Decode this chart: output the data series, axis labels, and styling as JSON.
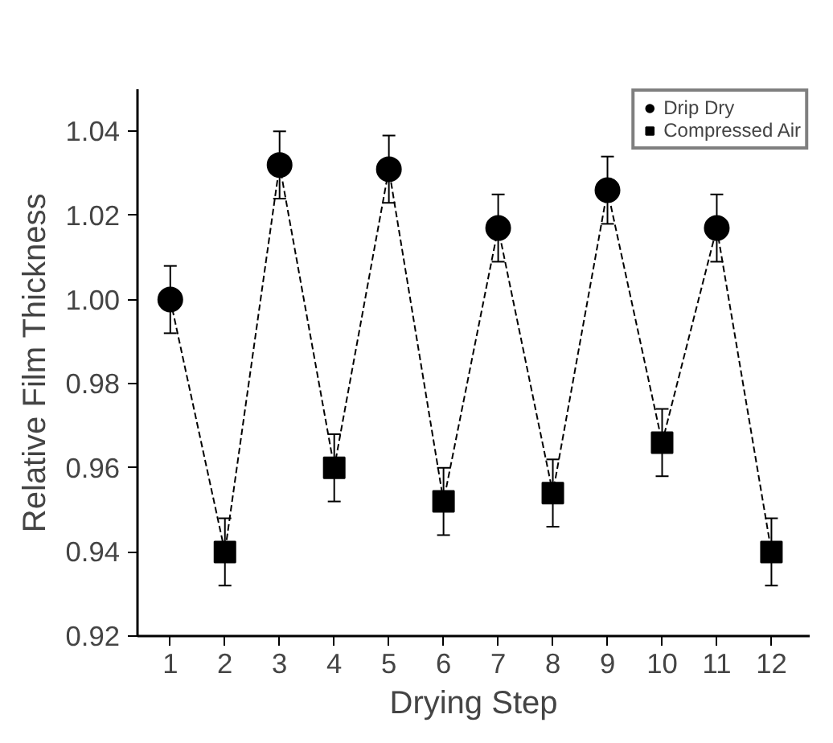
{
  "chart_data": {
    "type": "scatter",
    "xlabel": "Drying Step",
    "ylabel": "Relative Film Thickness",
    "xlim": [
      0.4,
      12.7
    ],
    "ylim": [
      0.92,
      1.05
    ],
    "xticks": [
      1,
      2,
      3,
      4,
      5,
      6,
      7,
      8,
      9,
      10,
      11,
      12
    ],
    "yticks": [
      {
        "value": 0.92,
        "label": "0.92"
      },
      {
        "value": 0.94,
        "label": "0.94"
      },
      {
        "value": 0.96,
        "label": "0.96"
      },
      {
        "value": 0.98,
        "label": "0.98"
      },
      {
        "value": 1.0,
        "label": "1.00"
      },
      {
        "value": 1.02,
        "label": "1.02"
      },
      {
        "value": 1.04,
        "label": "1.04"
      }
    ],
    "grid": false,
    "legend": "top right",
    "series": [
      {
        "type": "line",
        "color": "#000000",
        "line_style": "dashed",
        "marker": "none",
        "x": [
          1,
          2,
          3,
          4,
          5,
          6,
          7,
          8,
          9,
          10,
          11,
          12
        ],
        "values": [
          1.0,
          0.94,
          1.032,
          0.96,
          1.031,
          0.952,
          1.017,
          0.954,
          1.026,
          0.966,
          1.017,
          0.94
        ]
      },
      {
        "name": "Drip Dry",
        "color": "#000000",
        "marker": "circle",
        "x": [
          1,
          3,
          5,
          7,
          9,
          11
        ],
        "values": [
          1.0,
          1.032,
          1.031,
          1.017,
          1.026,
          1.017
        ],
        "errors": [
          0.008,
          0.008,
          0.008,
          0.008,
          0.008,
          0.008
        ]
      },
      {
        "name": "Compressed Air",
        "color": "#000000",
        "marker": "square",
        "x": [
          2,
          4,
          6,
          8,
          10,
          12
        ],
        "values": [
          0.94,
          0.96,
          0.952,
          0.954,
          0.966,
          0.94
        ],
        "errors": [
          0.008,
          0.008,
          0.008,
          0.008,
          0.008,
          0.008
        ]
      }
    ]
  }
}
